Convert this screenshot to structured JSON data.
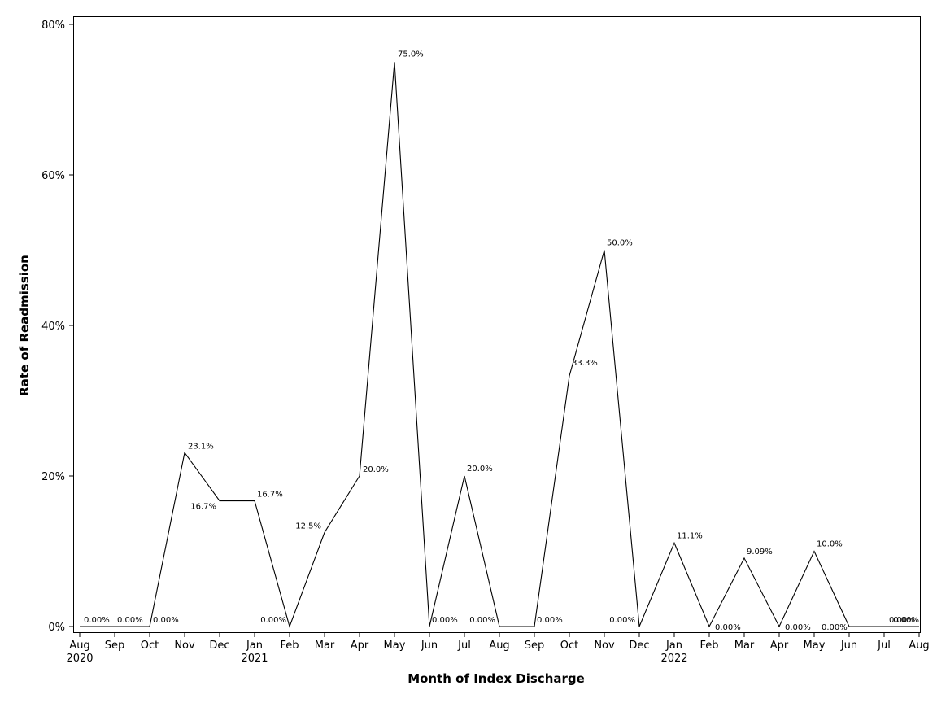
{
  "chart_data": {
    "type": "line",
    "xlabel": "Month of Index Discharge",
    "ylabel": "Rate of Readmission",
    "ylim": [
      0,
      80
    ],
    "y_ticks": [
      0,
      20,
      40,
      60,
      80
    ],
    "y_tick_labels": [
      "0%",
      "20%",
      "40%",
      "60%",
      "80%"
    ],
    "x_ticks": [
      {
        "month": "Aug",
        "year": "2020"
      },
      {
        "month": "Sep",
        "year": ""
      },
      {
        "month": "Oct",
        "year": ""
      },
      {
        "month": "Nov",
        "year": ""
      },
      {
        "month": "Dec",
        "year": ""
      },
      {
        "month": "Jan",
        "year": "2021"
      },
      {
        "month": "Feb",
        "year": ""
      },
      {
        "month": "Mar",
        "year": ""
      },
      {
        "month": "Apr",
        "year": ""
      },
      {
        "month": "May",
        "year": ""
      },
      {
        "month": "Jun",
        "year": ""
      },
      {
        "month": "Jul",
        "year": ""
      },
      {
        "month": "Aug",
        "year": ""
      },
      {
        "month": "Sep",
        "year": ""
      },
      {
        "month": "Oct",
        "year": ""
      },
      {
        "month": "Nov",
        "year": ""
      },
      {
        "month": "Dec",
        "year": ""
      },
      {
        "month": "Jan",
        "year": "2022"
      },
      {
        "month": "Feb",
        "year": ""
      },
      {
        "month": "Mar",
        "year": ""
      },
      {
        "month": "Apr",
        "year": ""
      },
      {
        "month": "May",
        "year": ""
      },
      {
        "month": "Jun",
        "year": ""
      },
      {
        "month": "Jul",
        "year": ""
      },
      {
        "month": "Aug",
        "year": ""
      }
    ],
    "values": [
      0,
      0,
      0,
      23.1,
      16.7,
      16.7,
      0,
      12.5,
      20.0,
      75.0,
      0,
      20.0,
      0,
      0,
      33.3,
      50.0,
      0,
      11.1,
      0,
      9.09,
      0,
      10.0,
      0,
      0,
      0
    ],
    "point_labels": [
      "0.00%",
      "0.00%",
      "0.00%",
      "23.1%",
      "16.7%",
      "16.7%",
      "0.00%",
      "12.5%",
      "20.0%",
      "75.0%",
      "0.00%",
      "20.0%",
      "0.00%",
      "0.00%",
      "33.3%",
      "50.0%",
      "0.00%",
      "11.1%",
      "0.00%",
      "9.09%",
      "0.00%",
      "10.0%",
      "0.00%",
      "0.00%",
      "0.00%"
    ],
    "grid": false,
    "legend": "none"
  }
}
